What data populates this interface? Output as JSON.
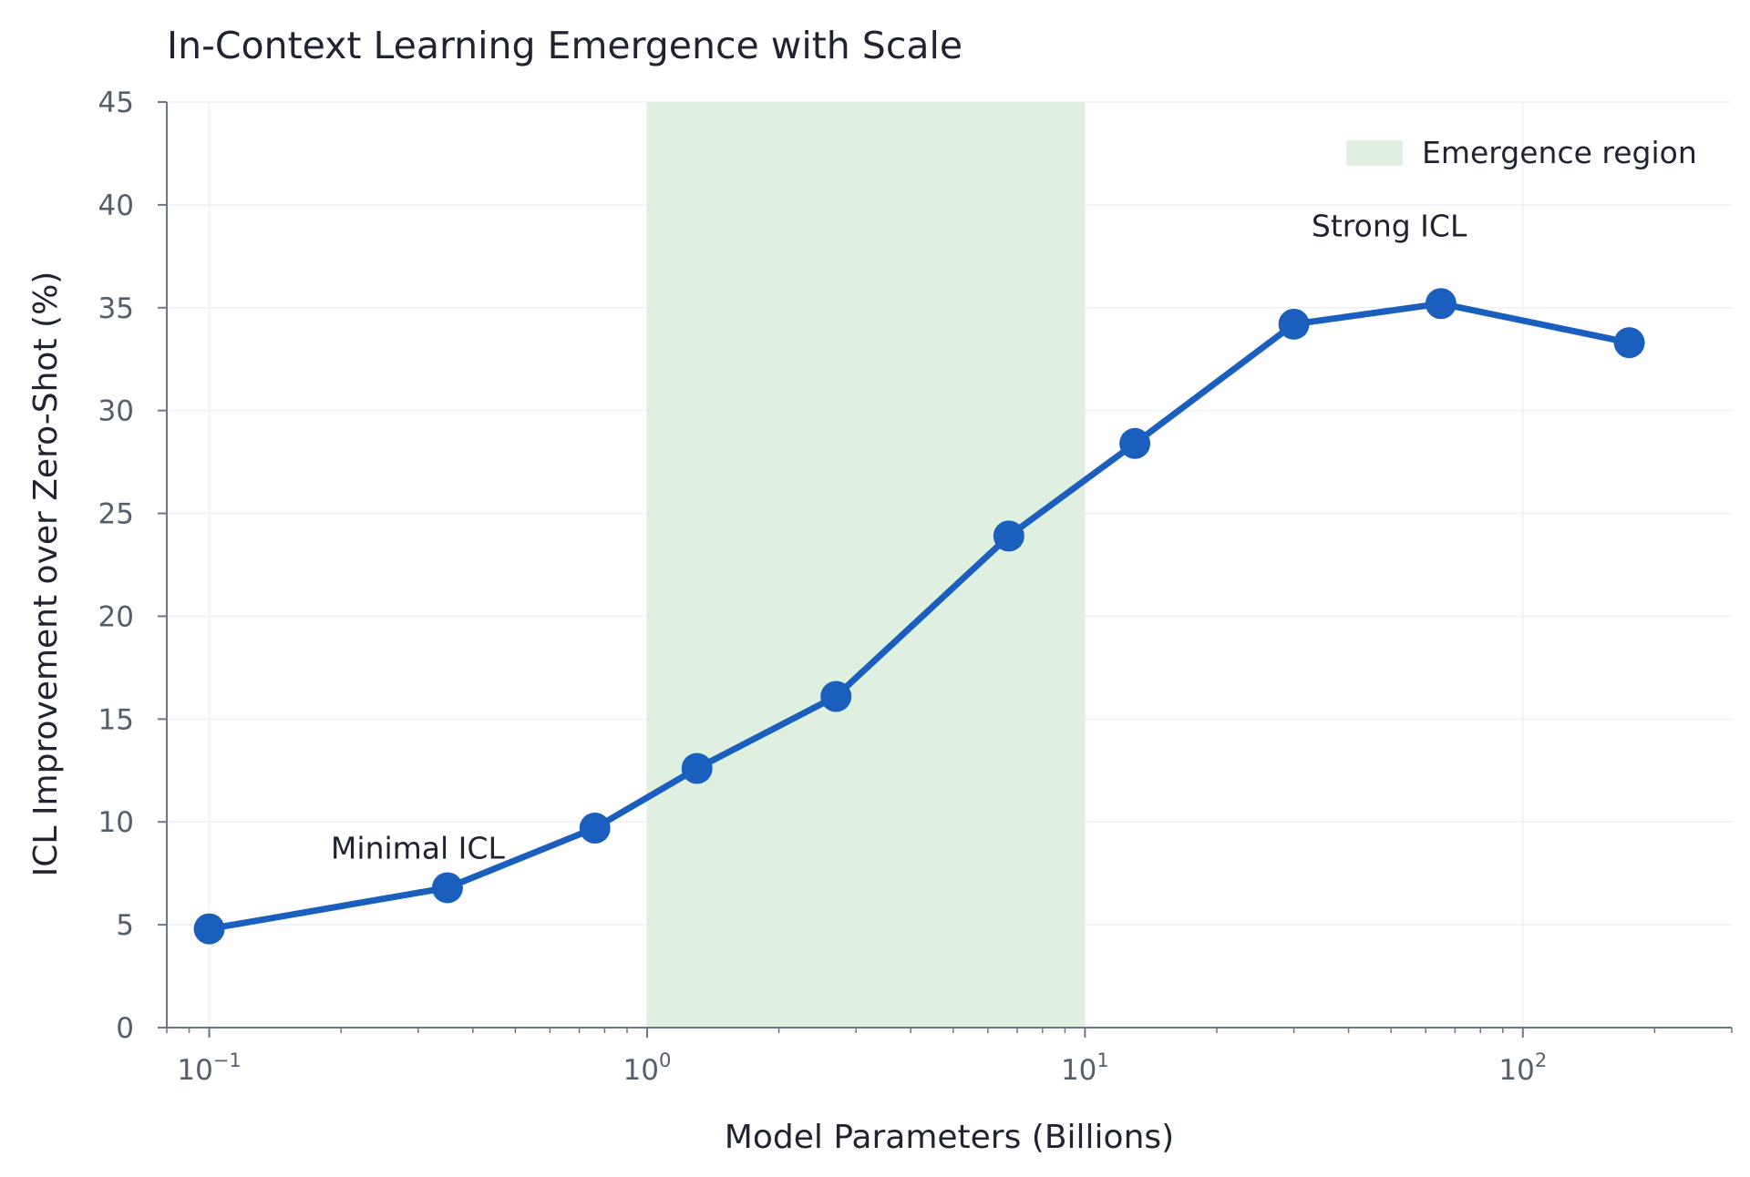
{
  "chart_data": {
    "type": "line",
    "title": "In-Context Learning Emergence with Scale",
    "xlabel": "Model Parameters (Billions)",
    "ylabel": "ICL Improvement over Zero-Shot (%)",
    "x_scale": "log",
    "xlim": [
      0.08,
      300
    ],
    "ylim": [
      0,
      45
    ],
    "x_ticks": [
      {
        "value": 0.1,
        "base": "10",
        "exp": "−1"
      },
      {
        "value": 1,
        "base": "10",
        "exp": "0"
      },
      {
        "value": 10,
        "base": "10",
        "exp": "1"
      },
      {
        "value": 100,
        "base": "10",
        "exp": "2"
      }
    ],
    "y_ticks": [
      0,
      5,
      10,
      15,
      20,
      25,
      30,
      35,
      40,
      45
    ],
    "grid": true,
    "series": [
      {
        "color": "#1a5fbe",
        "x": [
          0.1,
          0.35,
          0.76,
          1.3,
          2.7,
          6.7,
          13,
          30,
          65,
          175
        ],
        "y": [
          4.8,
          6.8,
          9.7,
          12.6,
          16.1,
          23.9,
          28.4,
          34.2,
          35.2,
          33.3
        ]
      }
    ],
    "shaded_region": {
      "x": [
        1,
        10
      ],
      "color": "#e0f0e0",
      "label": "Emergence region"
    },
    "legend": {
      "position": "top-right",
      "entries": [
        "Emergence region"
      ]
    },
    "annotations": [
      {
        "text": "Minimal ICL",
        "x": 0.35,
        "y": 6.8
      },
      {
        "text": "Strong ICL",
        "x": 65,
        "y": 35.2
      }
    ]
  }
}
